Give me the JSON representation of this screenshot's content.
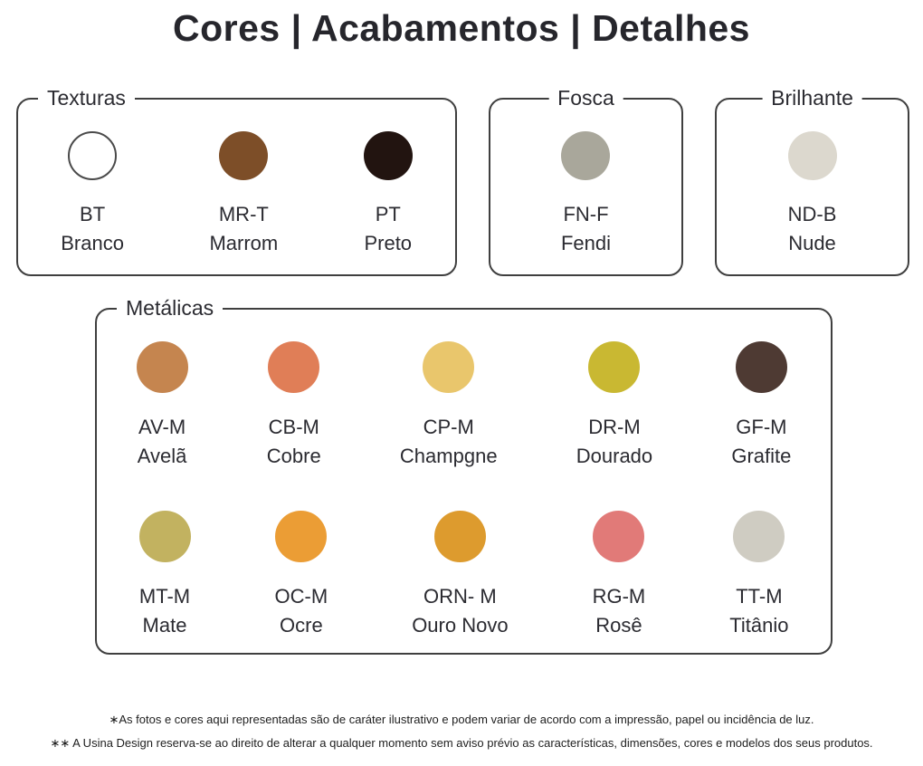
{
  "title": "Cores | Acabamentos | Detalhes",
  "sections": {
    "texturas": {
      "label": "Texturas",
      "swatches": [
        {
          "code": "BT",
          "name": "Branco",
          "color": "#ffffff"
        },
        {
          "code": "MR-T",
          "name": "Marrom",
          "color": "#7d4e28"
        },
        {
          "code": "PT",
          "name": "Preto",
          "color": "#221410"
        }
      ]
    },
    "fosca": {
      "label": "Fosca",
      "swatches": [
        {
          "code": "FN-F",
          "name": "Fendi",
          "color": "#a9a79b"
        }
      ]
    },
    "brilhante": {
      "label": "Brilhante",
      "swatches": [
        {
          "code": "ND-B",
          "name": "Nude",
          "color": "#dcd8ce"
        }
      ]
    },
    "metalicas": {
      "label": "Metálicas",
      "swatches": [
        {
          "code": "AV-M",
          "name": "Avelã",
          "color": "#c5854f"
        },
        {
          "code": "CB-M",
          "name": "Cobre",
          "color": "#e07e57"
        },
        {
          "code": "CP-M",
          "name": "Champgne",
          "color": "#e9c66c"
        },
        {
          "code": "DR-M",
          "name": "Dourado",
          "color": "#c9b832"
        },
        {
          "code": "GF-M",
          "name": "Grafite",
          "color": "#4e3a33"
        },
        {
          "code": "MT-M",
          "name": "Mate",
          "color": "#c2b260"
        },
        {
          "code": "OC-M",
          "name": "Ocre",
          "color": "#eb9d35"
        },
        {
          "code": "ORN- M",
          "name": "Ouro Novo",
          "color": "#dd9b2e"
        },
        {
          "code": "RG-M",
          "name": "Rosê",
          "color": "#e17a78"
        },
        {
          "code": "TT-M",
          "name": "Titânio",
          "color": "#cfccc2"
        }
      ]
    }
  },
  "colors": {
    "text": "#2b2b31",
    "panel_border": "#3f3f3f",
    "background": "#ffffff",
    "white_swatch_outline": "#4a4a4a"
  },
  "footnotes": [
    "∗As fotos e cores aqui representadas são de caráter ilustrativo e podem variar de acordo com a impressão, papel ou incidência de luz.",
    "∗∗ A Usina Design reserva-se ao direito de alterar a qualquer momento sem  aviso prévio  as características, dimensões, cores e modelos dos seus produtos."
  ]
}
